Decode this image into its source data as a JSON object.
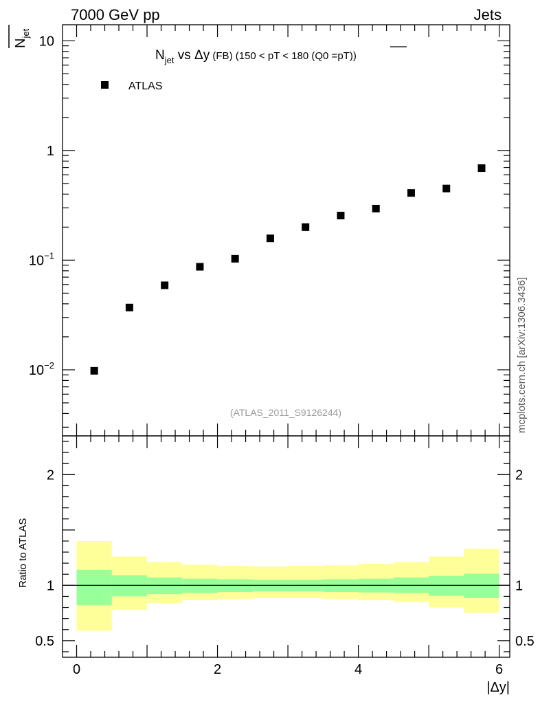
{
  "header": {
    "left": "7000 GeV pp",
    "right": "Jets"
  },
  "side_label": "mcplots.cern.ch [arXiv:1306.3436]",
  "ylabel_top": "N_jet",
  "ylabel_bottom": "Ratio to ATLAS",
  "xlabel": "|Δy|",
  "watermark": "(ATLAS_2011_S9126244)",
  "title": {
    "n": "N",
    "jet": "jet",
    "vs": " vs ",
    "dy": "Δy",
    "fb": " (FB)",
    "range": " (150 < pT < 180 (Q0 =",
    "pt": "pT",
    "close": "))"
  },
  "legend": {
    "label": "ATLAS"
  },
  "colors": {
    "marker": "#000000",
    "band_inner": "#99ff99",
    "band_outer": "#ffff99"
  },
  "chart_data": [
    {
      "type": "scatter",
      "scale": "log",
      "xlim": [
        -0.2,
        6.15
      ],
      "ylim": [
        0.0025,
        14
      ],
      "y_ticks": [
        {
          "value": 0.01,
          "base": "10",
          "exp": "−2"
        },
        {
          "value": 0.1,
          "base": "10",
          "exp": "−1"
        },
        {
          "value": 1,
          "base": "1",
          "exp": ""
        },
        {
          "value": 10,
          "base": "10",
          "exp": ""
        }
      ],
      "series": [
        {
          "name": "ATLAS",
          "x": [
            0.25,
            0.75,
            1.25,
            1.75,
            2.25,
            2.75,
            3.25,
            3.75,
            4.25,
            4.75,
            5.25,
            5.75
          ],
          "y": [
            0.0098,
            0.037,
            0.059,
            0.087,
            0.103,
            0.158,
            0.2,
            0.255,
            0.295,
            0.41,
            0.45,
            0.69
          ]
        }
      ]
    },
    {
      "type": "area",
      "xlim": [
        -0.2,
        6.15
      ],
      "ylim": [
        0.35,
        2.35
      ],
      "y_ticks": [
        0.5,
        1,
        2
      ],
      "y_tick_labels": [
        "0.5",
        "1",
        "2"
      ],
      "x_ticks": [
        0,
        2,
        4,
        6
      ],
      "x_tick_labels": [
        "0",
        "2",
        "4",
        "6"
      ],
      "reference_line": 1,
      "bins": [
        0,
        0.5,
        1,
        1.5,
        2,
        2.5,
        3,
        3.5,
        4,
        4.5,
        5,
        5.5,
        6
      ],
      "inner_band": {
        "lo": [
          0.82,
          0.9,
          0.92,
          0.93,
          0.94,
          0.945,
          0.945,
          0.94,
          0.935,
          0.93,
          0.905,
          0.885
        ],
        "hi": [
          1.14,
          1.09,
          1.07,
          1.06,
          1.055,
          1.05,
          1.05,
          1.055,
          1.06,
          1.07,
          1.085,
          1.105
        ]
      },
      "outer_band": {
        "lo": [
          0.59,
          0.78,
          0.84,
          0.865,
          0.875,
          0.885,
          0.885,
          0.875,
          0.865,
          0.85,
          0.8,
          0.75
        ],
        "hi": [
          1.4,
          1.26,
          1.21,
          1.185,
          1.175,
          1.17,
          1.175,
          1.18,
          1.195,
          1.21,
          1.26,
          1.33
        ]
      }
    }
  ]
}
